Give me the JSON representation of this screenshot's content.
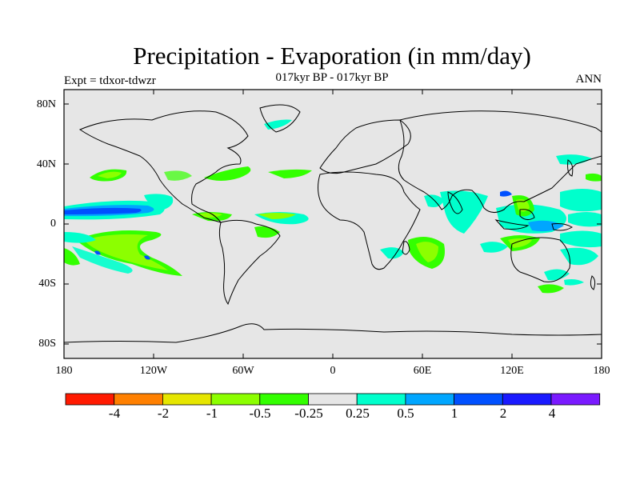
{
  "title": "Precipitation - Evaporation (in mm/day)",
  "subtitle": "017kyr BP - 017kyr BP",
  "left_label": "Expt = tdxor-tdwzr",
  "right_label": "ANN",
  "latitude_labels": [
    "80N",
    "40N",
    "0",
    "40S",
    "80S"
  ],
  "longitude_labels": [
    "180",
    "120W",
    "60W",
    "0",
    "60E",
    "120E",
    "180"
  ],
  "colorbar": {
    "colors": [
      "#ff1a00",
      "#ff8000",
      "#e6e600",
      "#8cff00",
      "#33ff00",
      "#e6e6e6",
      "#00ffcc",
      "#00a6ff",
      "#0050ff",
      "#1a1aff",
      "#7a1aff"
    ],
    "labels": [
      "-4",
      "-2",
      "-1",
      "-0.5",
      "-0.25",
      "0.25",
      "0.5",
      "1",
      "2",
      "4"
    ]
  },
  "colors": {
    "ocean_bg": "#e6e6e6",
    "coast": "#000000"
  }
}
